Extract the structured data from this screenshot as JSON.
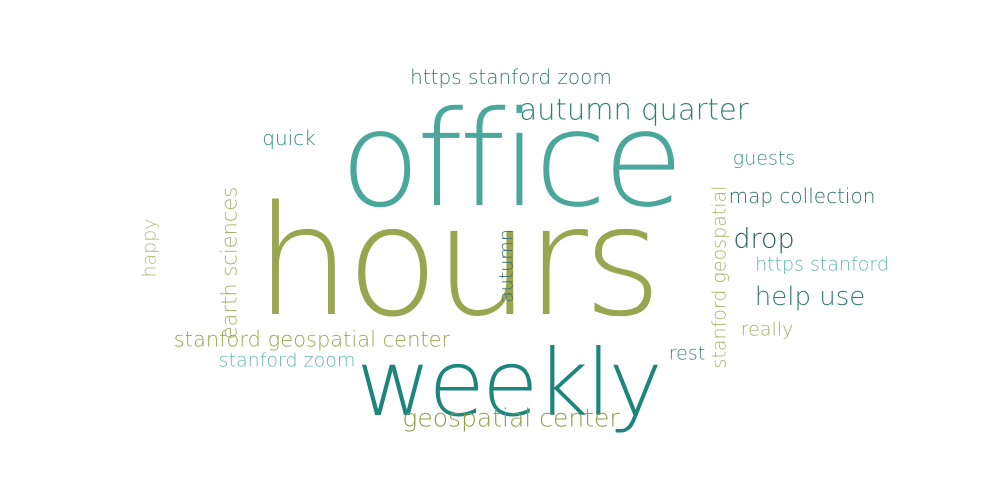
{
  "words": [
    {
      "key": "office",
      "text": "office",
      "color": "#4aa89a"
    },
    {
      "key": "hours",
      "text": "hours",
      "color": "#9aa550"
    },
    {
      "key": "weekly",
      "text": "weekly",
      "color": "#1c857c"
    },
    {
      "key": "autumn_quarter",
      "text": "autumn quarter",
      "color": "#2d7f73"
    },
    {
      "key": "https_stanford_zoom",
      "text": "https stanford zoom",
      "color": "#2e7a70"
    },
    {
      "key": "quick",
      "text": "quick",
      "color": "#2e8a7d"
    },
    {
      "key": "guests",
      "text": "guests",
      "color": "#3f9488"
    },
    {
      "key": "map_collection",
      "text": "map collection",
      "color": "#2f6f66"
    },
    {
      "key": "drop",
      "text": "drop",
      "color": "#235f57"
    },
    {
      "key": "https_stanford",
      "text": "https stanford",
      "color": "#5fb8aa"
    },
    {
      "key": "help_use",
      "text": "help use",
      "color": "#2e7a70"
    },
    {
      "key": "really",
      "text": "really",
      "color": "#a3ac63"
    },
    {
      "key": "rest",
      "text": "rest",
      "color": "#3f857b"
    },
    {
      "key": "stanford_geospatial_center",
      "text": "stanford geospatial center",
      "color": "#9aa550"
    },
    {
      "key": "stanford_zoom",
      "text": "stanford zoom",
      "color": "#5fb8aa"
    },
    {
      "key": "geospatial_center",
      "text": "geospatial center",
      "color": "#8e9c48"
    },
    {
      "key": "earth_sciences",
      "text": "earth sciences",
      "color": "#a8b06a"
    },
    {
      "key": "happy",
      "text": "happy",
      "color": "#b5bb80"
    },
    {
      "key": "autumn",
      "text": "autumn",
      "color": "#3f6f6a"
    },
    {
      "key": "stanford_geospatial",
      "text": "stanford geospatial",
      "color": "#a8b06a"
    }
  ]
}
